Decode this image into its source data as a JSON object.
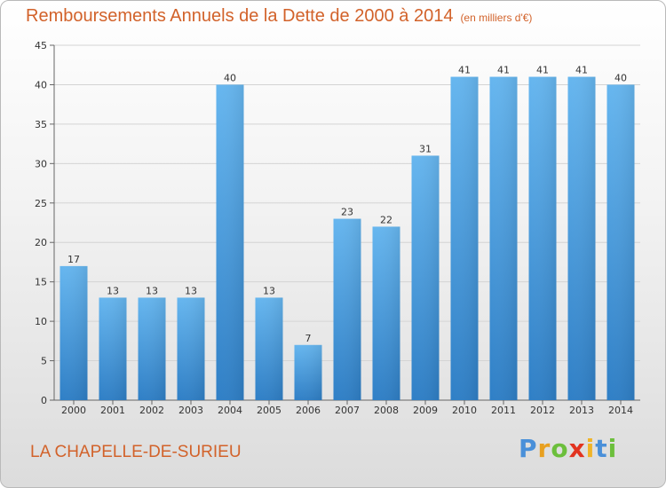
{
  "header": {
    "title": "Remboursements Annuels de la Dette de 2000 à 2014",
    "subtitle": "(en milliers d'€)"
  },
  "footer": {
    "commune": "LA CHAPELLE-DE-SURIEU",
    "brand": "Proxiti",
    "brand_letters": [
      "P",
      "r",
      "o",
      "x",
      "i",
      "t",
      "i"
    ]
  },
  "colors": {
    "bar": "#3f8fd8",
    "bar_light": "#63b4ee",
    "title": "#d2622a"
  },
  "chart_data": {
    "type": "bar",
    "title": "Remboursements Annuels de la Dette de 2000 à 2014",
    "xlabel": "",
    "ylabel": "",
    "categories": [
      "2000",
      "2001",
      "2002",
      "2003",
      "2004",
      "2005",
      "2006",
      "2007",
      "2008",
      "2009",
      "2010",
      "2011",
      "2012",
      "2013",
      "2014"
    ],
    "values": [
      17,
      13,
      13,
      13,
      40,
      13,
      7,
      23,
      22,
      31,
      41,
      41,
      41,
      41,
      40
    ],
    "ylim": [
      0,
      45
    ],
    "yticks": [
      0,
      5,
      10,
      15,
      20,
      25,
      30,
      35,
      40,
      45
    ],
    "grid": true
  }
}
